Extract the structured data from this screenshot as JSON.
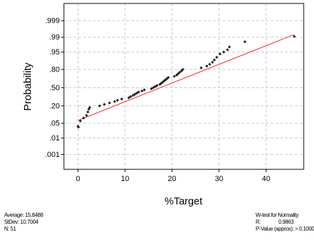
{
  "chart_data": {
    "type": "scatter",
    "title": "",
    "xlabel": "%Target",
    "ylabel": "Probability",
    "xlim": [
      -3,
      48
    ],
    "x_ticks": [
      0,
      10,
      20,
      30,
      40
    ],
    "y_ticks": [
      ".001",
      ".01",
      ".05",
      ".20",
      ".50",
      ".80",
      ".95",
      ".99",
      ".999"
    ],
    "y_tick_values": [
      0.001,
      0.01,
      0.05,
      0.2,
      0.5,
      0.8,
      0.95,
      0.99,
      0.999
    ],
    "y_scale": "normal-probability",
    "ylim_probability": [
      8e-05,
      0.99995
    ],
    "grid": true,
    "grid_style": "dashed",
    "colors": {
      "points": "#222222",
      "fit_line": "#e8302a",
      "grid": "#c8c8c8",
      "frame": "#000000"
    },
    "fit_line": {
      "x": [
        0,
        46
      ],
      "probability": [
        0.065,
        0.993
      ]
    },
    "points": [
      {
        "x": 0.0,
        "p": 0.037
      },
      {
        "x": 0.1,
        "p": 0.034
      },
      {
        "x": 0.5,
        "p": 0.062
      },
      {
        "x": 1.2,
        "p": 0.08
      },
      {
        "x": 1.8,
        "p": 0.1
      },
      {
        "x": 2.1,
        "p": 0.13
      },
      {
        "x": 2.3,
        "p": 0.16
      },
      {
        "x": 2.5,
        "p": 0.18
      },
      {
        "x": 4.6,
        "p": 0.2
      },
      {
        "x": 5.6,
        "p": 0.22
      },
      {
        "x": 6.7,
        "p": 0.24
      },
      {
        "x": 7.8,
        "p": 0.26
      },
      {
        "x": 8.4,
        "p": 0.28
      },
      {
        "x": 9.3,
        "p": 0.3
      },
      {
        "x": 10.8,
        "p": 0.32
      },
      {
        "x": 11.2,
        "p": 0.34
      },
      {
        "x": 11.7,
        "p": 0.36
      },
      {
        "x": 12.1,
        "p": 0.38
      },
      {
        "x": 12.5,
        "p": 0.4
      },
      {
        "x": 12.9,
        "p": 0.42
      },
      {
        "x": 13.6,
        "p": 0.44
      },
      {
        "x": 14.1,
        "p": 0.46
      },
      {
        "x": 15.6,
        "p": 0.48
      },
      {
        "x": 16.0,
        "p": 0.5
      },
      {
        "x": 16.4,
        "p": 0.52
      },
      {
        "x": 16.8,
        "p": 0.54
      },
      {
        "x": 17.4,
        "p": 0.56
      },
      {
        "x": 17.7,
        "p": 0.58
      },
      {
        "x": 18.0,
        "p": 0.6
      },
      {
        "x": 18.3,
        "p": 0.62
      },
      {
        "x": 18.6,
        "p": 0.64
      },
      {
        "x": 18.9,
        "p": 0.66
      },
      {
        "x": 19.2,
        "p": 0.68
      },
      {
        "x": 20.5,
        "p": 0.7
      },
      {
        "x": 21.0,
        "p": 0.72
      },
      {
        "x": 21.3,
        "p": 0.74
      },
      {
        "x": 21.6,
        "p": 0.76
      },
      {
        "x": 22.0,
        "p": 0.78
      },
      {
        "x": 22.3,
        "p": 0.8
      },
      {
        "x": 26.2,
        "p": 0.82
      },
      {
        "x": 27.4,
        "p": 0.84
      },
      {
        "x": 28.0,
        "p": 0.86
      },
      {
        "x": 28.6,
        "p": 0.88
      },
      {
        "x": 29.0,
        "p": 0.9
      },
      {
        "x": 29.5,
        "p": 0.92
      },
      {
        "x": 30.2,
        "p": 0.94
      },
      {
        "x": 31.0,
        "p": 0.95
      },
      {
        "x": 31.8,
        "p": 0.96
      },
      {
        "x": 32.2,
        "p": 0.97
      },
      {
        "x": 35.5,
        "p": 0.983
      },
      {
        "x": 46.0,
        "p": 0.991
      }
    ]
  },
  "stats_left": {
    "average": "Average: 15.8488",
    "stdev": "StDev: 10.7004",
    "n": "N: 51"
  },
  "stats_right": {
    "title": "W-test for Normality",
    "r_label": "R:",
    "r_value": "0.9863",
    "p_value": "P-Value (approx): > 0.1000"
  }
}
